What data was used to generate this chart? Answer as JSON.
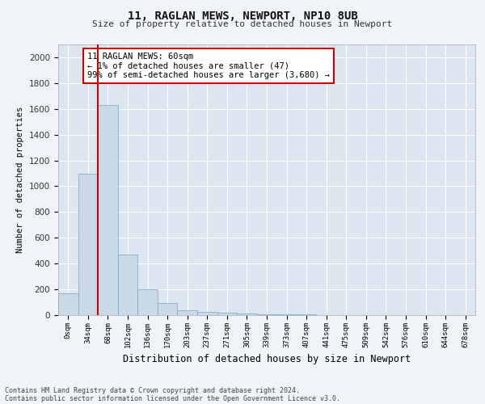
{
  "title": "11, RAGLAN MEWS, NEWPORT, NP10 8UB",
  "subtitle": "Size of property relative to detached houses in Newport",
  "xlabel": "Distribution of detached houses by size in Newport",
  "ylabel": "Number of detached properties",
  "bin_labels": [
    "0sqm",
    "34sqm",
    "68sqm",
    "102sqm",
    "136sqm",
    "170sqm",
    "203sqm",
    "237sqm",
    "271sqm",
    "305sqm",
    "339sqm",
    "373sqm",
    "407sqm",
    "441sqm",
    "475sqm",
    "509sqm",
    "542sqm",
    "576sqm",
    "610sqm",
    "644sqm",
    "678sqm"
  ],
  "bar_values": [
    170,
    1100,
    1630,
    470,
    200,
    95,
    35,
    25,
    18,
    10,
    8,
    5,
    5,
    2,
    1,
    1,
    0,
    0,
    0,
    0,
    0
  ],
  "bar_color": "#c9d9e8",
  "bar_edge_color": "#7ba3c0",
  "property_line_color": "#cc0000",
  "annotation_text": "11 RAGLAN MEWS: 60sqm\n← 1% of detached houses are smaller (47)\n99% of semi-detached houses are larger (3,680) →",
  "annotation_box_color": "#ffffff",
  "annotation_box_edge": "#cc0000",
  "ylim": [
    0,
    2100
  ],
  "yticks": [
    0,
    200,
    400,
    600,
    800,
    1000,
    1200,
    1400,
    1600,
    1800,
    2000
  ],
  "fig_bg_color": "#f0f4f8",
  "plot_bg_color": "#dce6f0",
  "grid_color": "#ffffff",
  "footnote1": "Contains HM Land Registry data © Crown copyright and database right 2024.",
  "footnote2": "Contains public sector information licensed under the Open Government Licence v3.0."
}
